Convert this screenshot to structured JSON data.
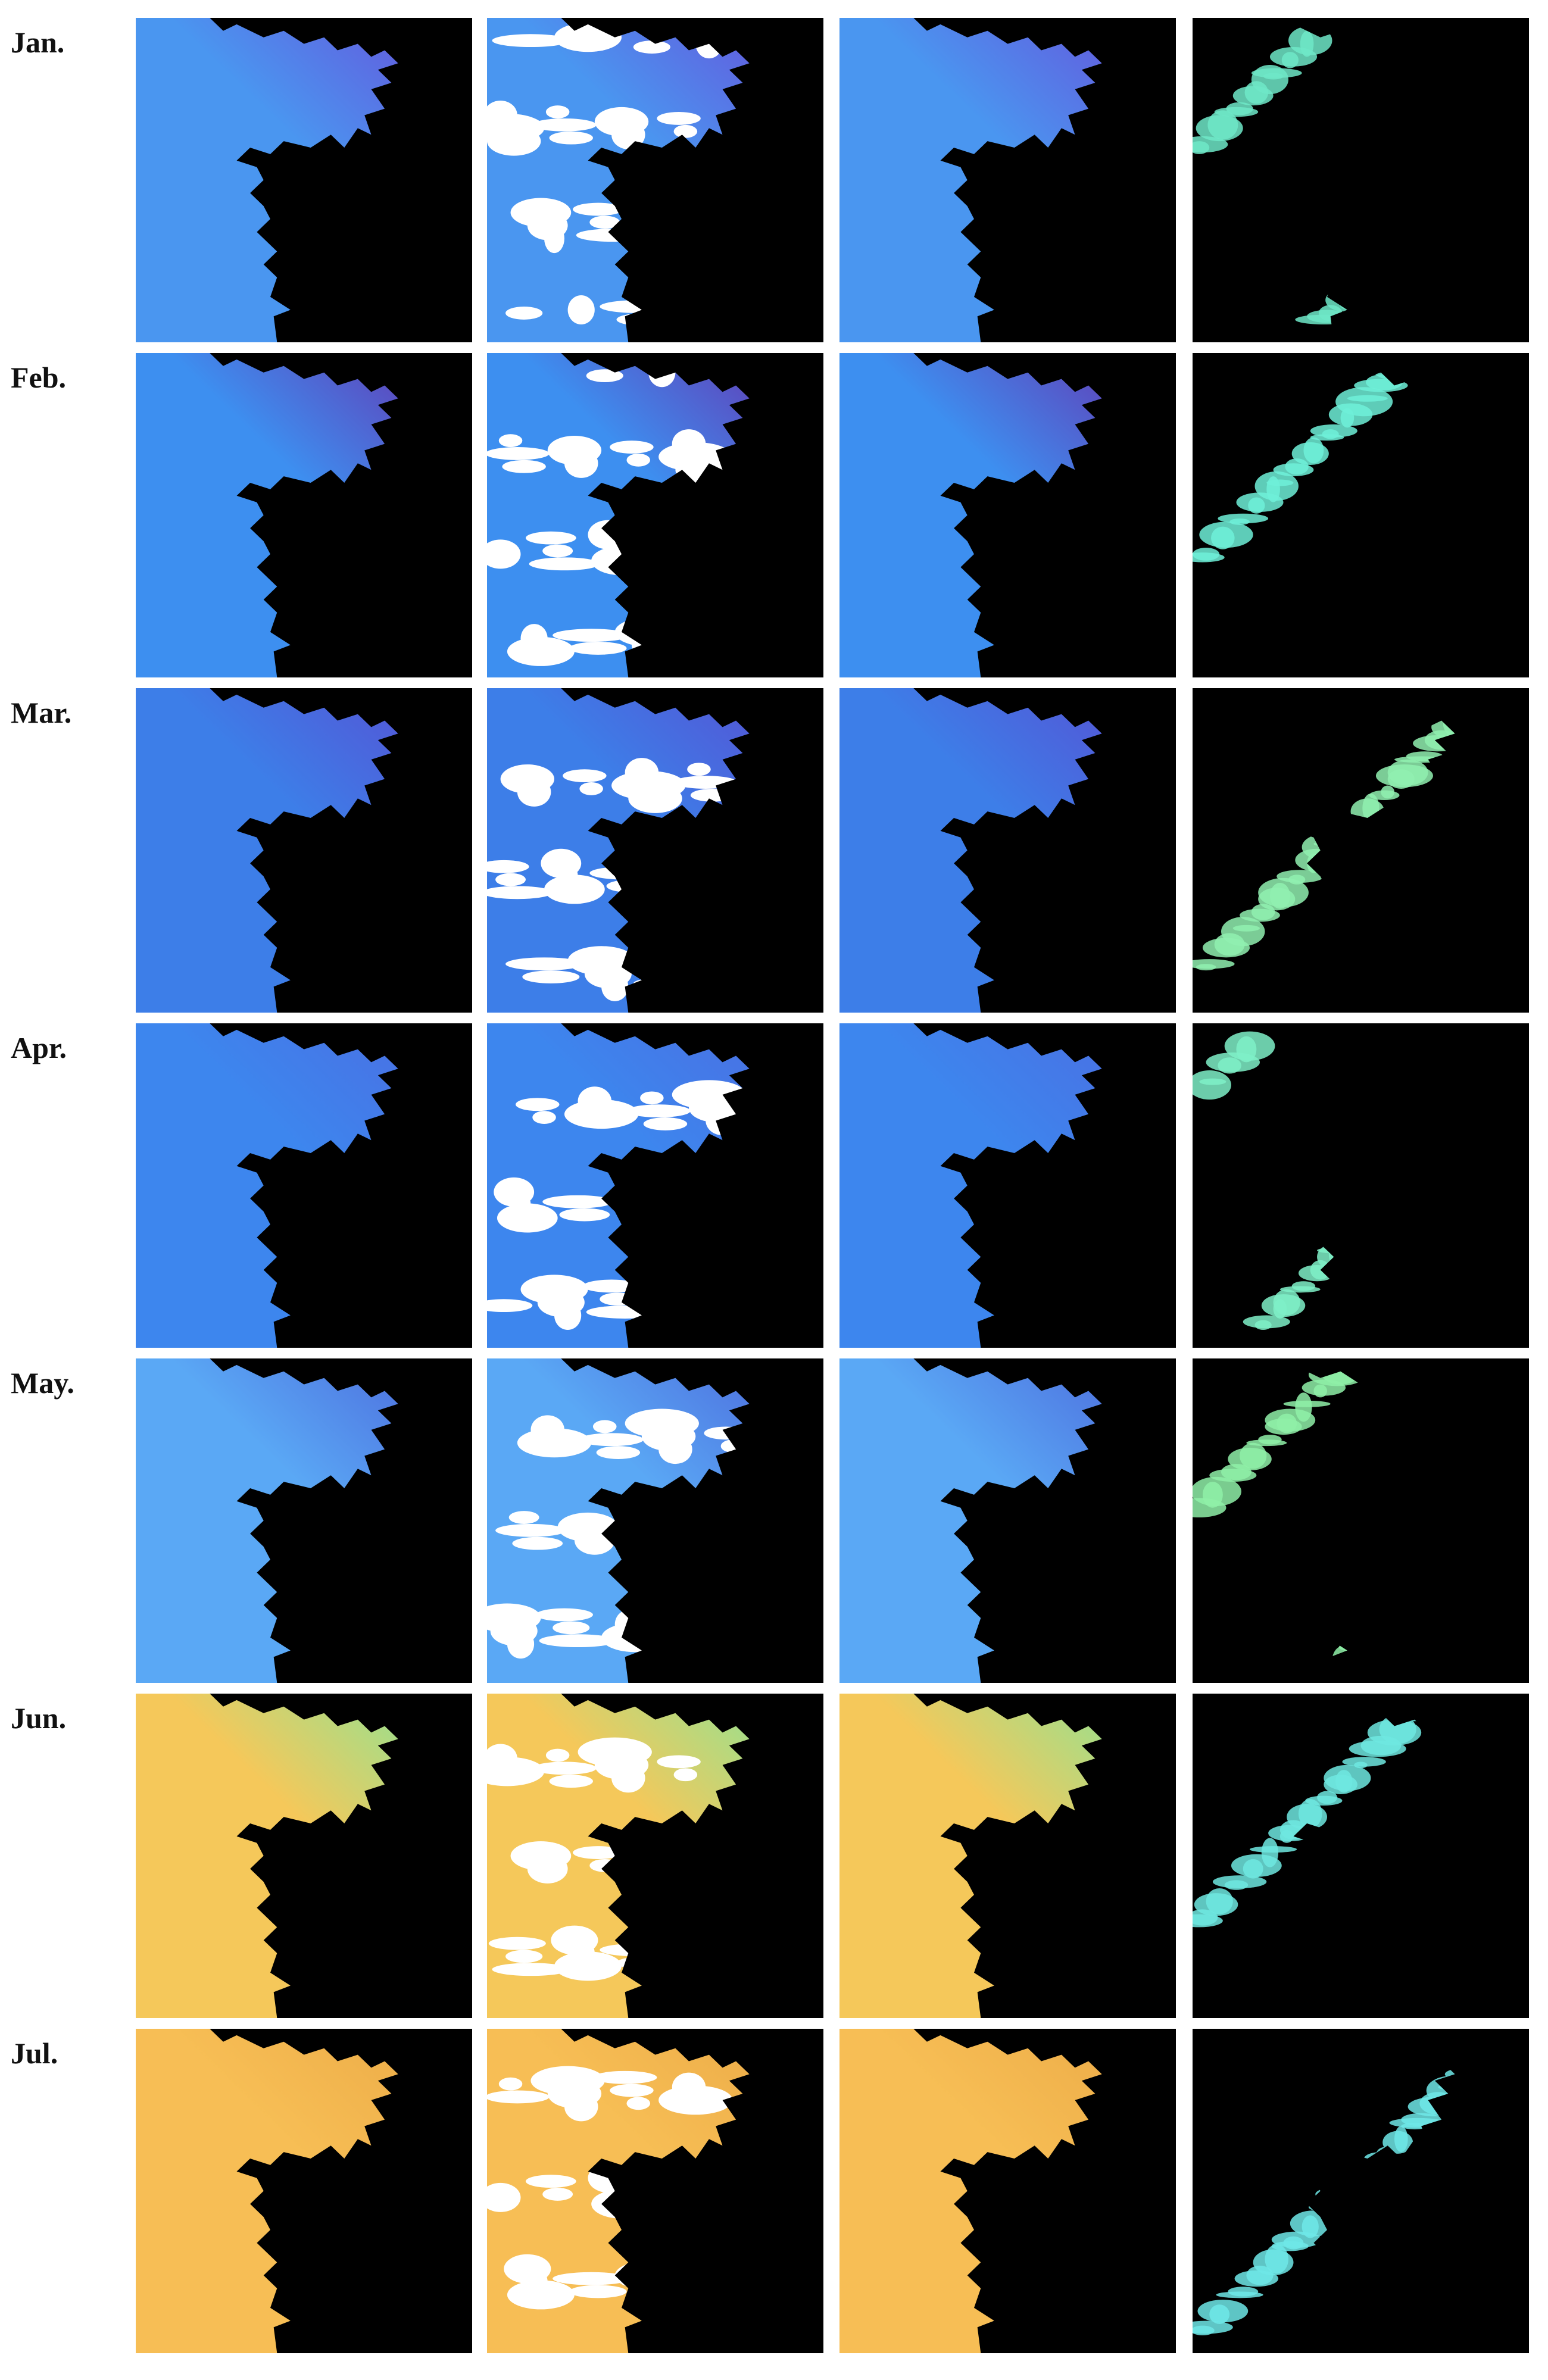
{
  "rows": [
    {
      "month": "Jan.",
      "base": "#4a96f0",
      "deep": "#6a4ad8",
      "gap": "#6fe8c8"
    },
    {
      "month": "Feb.",
      "base": "#3d8ff0",
      "deep": "#6a2aa8",
      "gap": "#6ff0d8"
    },
    {
      "month": "Mar.",
      "base": "#3d7ee8",
      "deep": "#5a4ad0",
      "gap": "#90f0b0"
    },
    {
      "month": "Apr.",
      "base": "#3d86ee",
      "deep": "#4d6ae0",
      "gap": "#7ff0c8"
    },
    {
      "month": "May.",
      "base": "#5aa8f5",
      "deep": "#4a60d8",
      "gap": "#8ff0a8"
    },
    {
      "month": "Jun.",
      "base": "#f5c85a",
      "deep": "#7ae8a0",
      "gap": "#6fe8e0"
    },
    {
      "month": "Jul.",
      "base": "#f7be55",
      "deep": "#eaa845",
      "gap": "#6fe8e8"
    }
  ],
  "colors": {
    "land": "#000000",
    "cloud": "#ffffff",
    "page": "#ffffff"
  }
}
